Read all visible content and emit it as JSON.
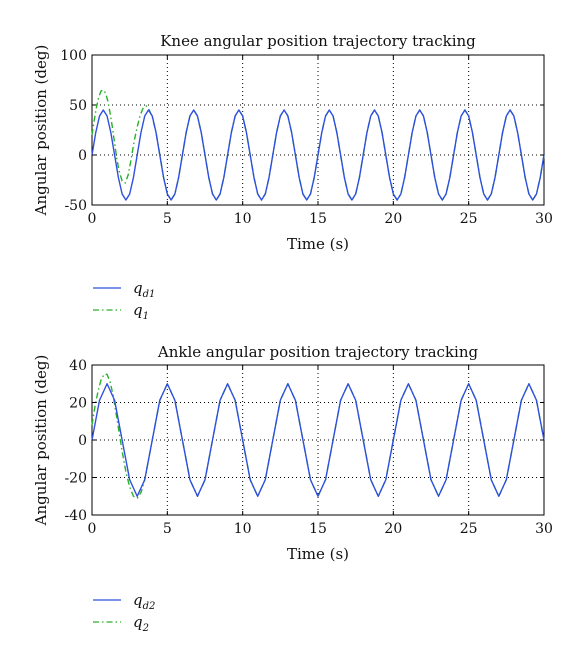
{
  "chart_data": [
    {
      "type": "line",
      "title": "Knee angular position trajectory tracking",
      "xlabel": "Time (s)",
      "ylabel": "Angular position (deg)",
      "xlim": [
        0,
        30
      ],
      "ylim": [
        -50,
        100
      ],
      "xticks": [
        0,
        5,
        10,
        15,
        20,
        25,
        30
      ],
      "yticks": [
        -50,
        0,
        50,
        100
      ],
      "grid": "dotted",
      "legend_placement": "below",
      "series": [
        {
          "name": "q_d1",
          "label_main": "q",
          "label_sub": "d1",
          "color": "#2f4fe0",
          "style": "solid",
          "x": [
            0,
            0.25,
            0.5,
            0.75,
            1.0,
            1.25,
            1.5,
            1.75,
            2.0,
            2.25,
            2.5,
            2.75,
            3.0,
            3.25,
            3.5,
            3.75,
            4.0,
            4.25,
            4.5,
            4.75,
            5.0,
            5.25,
            5.5,
            5.75,
            6.0,
            6.25,
            6.5,
            6.75,
            7.0,
            7.25,
            7.5,
            7.75,
            8.0,
            8.25,
            8.5,
            8.75,
            9.0,
            9.25,
            9.5,
            9.75,
            10.0,
            10.25,
            10.5,
            10.75,
            11.0,
            11.25,
            11.5,
            11.75,
            12.0,
            12.25,
            12.5,
            12.75,
            13.0,
            13.25,
            13.5,
            13.75,
            14.0,
            14.25,
            14.5,
            14.75,
            15.0,
            15.25,
            15.5,
            15.75,
            16.0,
            16.25,
            16.5,
            16.75,
            17.0,
            17.25,
            17.5,
            17.75,
            18.0,
            18.25,
            18.5,
            18.75,
            19.0,
            19.25,
            19.5,
            19.75,
            20.0,
            20.25,
            20.5,
            20.75,
            21.0,
            21.25,
            21.5,
            21.75,
            22.0,
            22.25,
            22.5,
            22.75,
            23.0,
            23.25,
            23.5,
            23.75,
            24.0,
            24.25,
            24.5,
            24.75,
            25.0,
            25.25,
            25.5,
            25.75,
            26.0,
            26.25,
            26.5,
            26.75,
            27.0,
            27.25,
            27.5,
            27.75,
            28.0,
            28.25,
            28.5,
            28.75,
            29.0,
            29.25,
            29.5,
            29.75,
            30.0
          ],
          "y": [
            0.0,
            22.5,
            39.0,
            45.0,
            39.0,
            22.5,
            0.0,
            -22.5,
            -39.0,
            -45.0,
            -39.0,
            -22.5,
            0.0,
            22.5,
            39.0,
            45.0,
            39.0,
            22.5,
            0.0,
            -22.5,
            -39.0,
            -45.0,
            -39.0,
            -22.5,
            0.0,
            22.5,
            39.0,
            45.0,
            39.0,
            22.5,
            0.0,
            -22.5,
            -39.0,
            -45.0,
            -39.0,
            -22.5,
            0.0,
            22.5,
            39.0,
            45.0,
            39.0,
            22.5,
            0.0,
            -22.5,
            -39.0,
            -45.0,
            -39.0,
            -22.5,
            0.0,
            22.5,
            39.0,
            45.0,
            39.0,
            22.5,
            0.0,
            -22.5,
            -39.0,
            -45.0,
            -39.0,
            -22.5,
            0.0,
            22.5,
            39.0,
            45.0,
            39.0,
            22.5,
            0.0,
            -22.5,
            -39.0,
            -45.0,
            -39.0,
            -22.5,
            0.0,
            22.5,
            39.0,
            45.0,
            39.0,
            22.5,
            0.0,
            -22.5,
            -39.0,
            -45.0,
            -39.0,
            -22.5,
            0.0,
            22.5,
            39.0,
            45.0,
            39.0,
            22.5,
            0.0,
            -22.5,
            -39.0,
            -45.0,
            -39.0,
            -22.5,
            0.0,
            22.5,
            39.0,
            45.0,
            39.0,
            22.5,
            0.0,
            -22.5,
            -39.0,
            -45.0,
            -39.0,
            -22.5,
            0.0,
            22.5,
            39.0,
            45.0,
            39.0,
            22.5,
            0.0,
            -22.5,
            -39.0,
            -45.0,
            -39.0,
            -22.5,
            0.0
          ]
        },
        {
          "name": "q_1",
          "label_main": "q",
          "label_sub": "1",
          "color": "#2ab02a",
          "style": "dashdot",
          "x": [
            0,
            0.15,
            0.3,
            0.45,
            0.6,
            0.75,
            0.9,
            1.05,
            1.2,
            1.35,
            1.5,
            1.65,
            1.8,
            2.0,
            2.2,
            2.4,
            2.6,
            2.8,
            3.0,
            3.2,
            3.4,
            3.6,
            3.8,
            4.0,
            4.25,
            4.5,
            4.75,
            5.0,
            5.25,
            5.5,
            5.75,
            6.0,
            6.25,
            6.5,
            6.75,
            7.0,
            7.25,
            7.5,
            7.75,
            8.0,
            8.25,
            8.5,
            8.75,
            9.0,
            9.25,
            9.5,
            9.75,
            10.0,
            10.25,
            10.5,
            10.75,
            11.0,
            11.25,
            11.5,
            11.75,
            12.0,
            12.25,
            12.5,
            12.75,
            13.0,
            13.25,
            13.5,
            13.75,
            14.0,
            14.25,
            14.5,
            14.75,
            15.0,
            15.25,
            15.5,
            15.75,
            16.0,
            16.25,
            16.5,
            16.75,
            17.0,
            17.25,
            17.5,
            17.75,
            18.0,
            18.25,
            18.5,
            18.75,
            19.0,
            19.25,
            19.5,
            19.75,
            20.0,
            20.25,
            20.5,
            20.75,
            21.0,
            21.25,
            21.5,
            21.75,
            22.0,
            22.25,
            22.5,
            22.75,
            23.0,
            23.25,
            23.5,
            23.75,
            24.0,
            24.25,
            24.5,
            24.75,
            25.0,
            25.25,
            25.5,
            25.75,
            26.0,
            26.25,
            26.5,
            26.75,
            27.0,
            27.25,
            27.5,
            27.75,
            28.0,
            28.25,
            28.5,
            28.75,
            29.0,
            29.25,
            29.5,
            29.75,
            30.0
          ],
          "y": [
            20.0,
            35.0,
            48.0,
            58.0,
            64.0,
            65.0,
            62.0,
            54.0,
            42.0,
            28.0,
            12.0,
            -4.0,
            -16.0,
            -26.0,
            -28.0,
            -20.0,
            -4.0,
            14.0,
            28.0,
            40.0,
            47.0,
            49.0,
            45.0,
            38.0,
            22.5,
            0.0,
            -22.5,
            -39.0,
            -45.0,
            -39.0,
            -22.5,
            0.0,
            22.5,
            39.0,
            45.0,
            39.0,
            22.5,
            0.0,
            -22.5,
            -39.0,
            -45.0,
            -39.0,
            -22.5,
            0.0,
            22.5,
            39.0,
            45.0,
            39.0,
            22.5,
            0.0,
            -22.5,
            -39.0,
            -45.0,
            -39.0,
            -22.5,
            0.0,
            22.5,
            39.0,
            45.0,
            39.0,
            22.5,
            0.0,
            -22.5,
            -39.0,
            -45.0,
            -39.0,
            -22.5,
            0.0,
            22.5,
            39.0,
            45.0,
            39.0,
            22.5,
            0.0,
            -22.5,
            -39.0,
            -45.0,
            -39.0,
            -22.5,
            0.0,
            22.5,
            39.0,
            45.0,
            39.0,
            22.5,
            0.0,
            -22.5,
            -39.0,
            -45.0,
            -39.0,
            -22.5,
            0.0,
            22.5,
            39.0,
            45.0,
            39.0,
            22.5,
            0.0,
            -22.5,
            -39.0,
            -45.0,
            -39.0,
            -22.5,
            0.0,
            22.5,
            39.0,
            45.0,
            39.0,
            22.5,
            0.0,
            -22.5,
            -39.0,
            -45.0,
            -39.0,
            -22.5,
            0.0,
            22.5,
            39.0,
            45.0,
            39.0,
            22.5,
            0.0,
            -22.5,
            -39.0,
            -45.0,
            -39.0,
            -22.5,
            0.0
          ]
        }
      ]
    },
    {
      "type": "line",
      "title": "Ankle angular position trajectory tracking",
      "xlabel": "Time (s)",
      "ylabel": "Angular position (deg)",
      "xlim": [
        0,
        30
      ],
      "ylim": [
        -40,
        40
      ],
      "xticks": [
        0,
        5,
        10,
        15,
        20,
        25,
        30
      ],
      "yticks": [
        -40,
        -20,
        0,
        20,
        40
      ],
      "grid": "dotted",
      "legend_placement": "below",
      "series": [
        {
          "name": "q_d2",
          "label_main": "q",
          "label_sub": "d2",
          "color": "#2f4fe0",
          "style": "solid",
          "x": [
            0,
            0.5,
            1.0,
            1.5,
            2.0,
            2.5,
            3.0,
            3.5,
            4.0,
            4.5,
            5.0,
            5.5,
            6.0,
            6.5,
            7.0,
            7.5,
            8.0,
            8.5,
            9.0,
            9.5,
            10.0,
            10.5,
            11.0,
            11.5,
            12.0,
            12.5,
            13.0,
            13.5,
            14.0,
            14.5,
            15.0,
            15.5,
            16.0,
            16.5,
            17.0,
            17.5,
            18.0,
            18.5,
            19.0,
            19.5,
            20.0,
            20.5,
            21.0,
            21.5,
            22.0,
            22.5,
            23.0,
            23.5,
            24.0,
            24.5,
            25.0,
            25.5,
            26.0,
            26.5,
            27.0,
            27.5,
            28.0,
            28.5,
            29.0,
            29.5,
            30.0
          ],
          "y": [
            0.0,
            21.2,
            30.0,
            21.2,
            0.0,
            -21.2,
            -30.0,
            -21.2,
            0.0,
            21.2,
            30.0,
            21.2,
            0.0,
            -21.2,
            -30.0,
            -21.2,
            0.0,
            21.2,
            30.0,
            21.2,
            0.0,
            -21.2,
            -30.0,
            -21.2,
            0.0,
            21.2,
            30.0,
            21.2,
            0.0,
            -21.2,
            -30.0,
            -21.2,
            0.0,
            21.2,
            30.0,
            21.2,
            0.0,
            -21.2,
            -30.0,
            -21.2,
            0.0,
            21.2,
            30.0,
            21.2,
            0.0,
            -21.2,
            -30.0,
            -21.2,
            0.0,
            21.2,
            30.0,
            21.2,
            0.0,
            -21.2,
            -30.0,
            -21.2,
            0.0,
            21.2,
            30.0,
            21.2,
            0.0
          ]
        },
        {
          "name": "q_2",
          "label_main": "q",
          "label_sub": "2",
          "color": "#2ab02a",
          "style": "dashdot",
          "x": [
            0,
            0.2,
            0.4,
            0.6,
            0.8,
            1.0,
            1.2,
            1.4,
            1.6,
            1.8,
            2.0,
            2.25,
            2.5,
            2.75,
            3.0,
            3.25,
            3.5,
            4.0,
            4.5,
            5.0,
            5.5,
            6.0,
            6.5,
            7.0,
            7.5,
            8.0,
            8.5,
            9.0,
            9.5,
            10.0,
            10.5,
            11.0,
            11.5,
            12.0,
            12.5,
            13.0,
            13.5,
            14.0,
            14.5,
            15.0,
            15.5,
            16.0,
            16.5,
            17.0,
            17.5,
            18.0,
            18.5,
            19.0,
            19.5,
            20.0,
            20.5,
            21.0,
            21.5,
            22.0,
            22.5,
            23.0,
            23.5,
            24.0,
            24.5,
            25.0,
            25.5,
            26.0,
            26.5,
            27.0,
            27.5,
            28.0,
            28.5,
            29.0,
            29.5,
            30.0
          ],
          "y": [
            8.0,
            18.0,
            26.0,
            32.0,
            35.0,
            35.0,
            31.0,
            24.0,
            14.0,
            4.0,
            -6.0,
            -17.0,
            -25.0,
            -30.0,
            -31.0,
            -28.0,
            -21.2,
            0.0,
            21.2,
            30.0,
            21.2,
            0.0,
            -21.2,
            -30.0,
            -21.2,
            0.0,
            21.2,
            30.0,
            21.2,
            0.0,
            -21.2,
            -30.0,
            -21.2,
            0.0,
            21.2,
            30.0,
            21.2,
            0.0,
            -21.2,
            -30.0,
            -21.2,
            0.0,
            21.2,
            30.0,
            21.2,
            0.0,
            -21.2,
            -30.0,
            -21.2,
            0.0,
            21.2,
            30.0,
            21.2,
            0.0,
            -21.2,
            -30.0,
            -21.2,
            0.0,
            21.2,
            30.0,
            21.2,
            0.0,
            -21.2,
            -30.0,
            -21.2,
            0.0,
            21.2,
            30.0,
            21.2,
            0.0
          ]
        }
      ]
    }
  ]
}
